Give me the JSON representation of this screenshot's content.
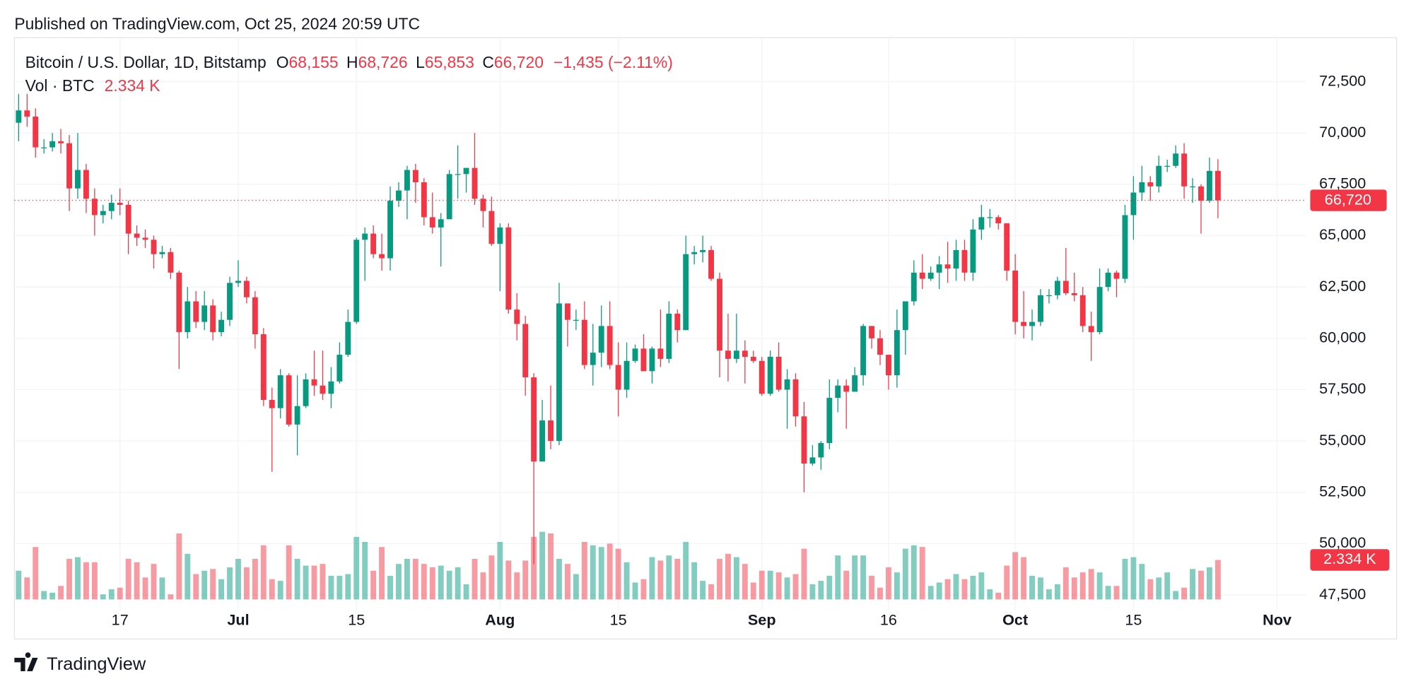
{
  "header": {
    "published": "Published on TradingView.com, Oct 25, 2024 20:59 UTC",
    "symbol": "Bitcoin / U.S. Dollar, 1D, Bitstamp",
    "open_prefix": "O",
    "open": "68,155",
    "high_prefix": "H",
    "high": "68,726",
    "low_prefix": "L",
    "low": "65,853",
    "close_prefix": "C",
    "close": "66,720",
    "change": "−1,435 (−2.11%)",
    "volume_title": "Vol · BTC",
    "volume": "2.334 K"
  },
  "footer": {
    "brand": "TradingView"
  },
  "chart_data": {
    "type": "candlestick",
    "colors": {
      "up": "#089981",
      "down": "#f23645"
    },
    "grid": true,
    "last_price_label": "66,720",
    "last_volume_label": "2.334 K",
    "categories": [
      null,
      null,
      null,
      null,
      null,
      null,
      null,
      null,
      null,
      null,
      null,
      null,
      "17",
      null,
      null,
      null,
      null,
      null,
      null,
      null,
      null,
      null,
      null,
      null,
      null,
      null,
      "Jul",
      null,
      null,
      null,
      null,
      null,
      null,
      null,
      null,
      null,
      null,
      null,
      null,
      null,
      "15",
      null,
      null,
      null,
      null,
      null,
      null,
      null,
      null,
      null,
      null,
      null,
      null,
      null,
      null,
      null,
      null,
      "Aug",
      null,
      null,
      null,
      null,
      null,
      null,
      null,
      null,
      null,
      null,
      null,
      null,
      null,
      "15",
      null,
      null,
      null,
      null,
      null,
      null,
      null,
      null,
      null,
      null,
      null,
      null,
      null,
      null,
      null,
      null,
      "Sep",
      null,
      null,
      null,
      null,
      null,
      null,
      null,
      null,
      null,
      null,
      null,
      null,
      null,
      null,
      "16",
      null,
      null,
      null,
      null,
      null,
      null,
      null,
      null,
      null,
      null,
      null,
      null,
      null,
      null,
      "Oct",
      null,
      null,
      null,
      null,
      null,
      null,
      null,
      null,
      null,
      null,
      null,
      null,
      null,
      "15",
      null,
      null,
      null,
      null,
      null,
      null,
      null,
      null,
      null,
      null,
      null,
      null,
      null,
      null,
      null,
      null,
      "Nov",
      null,
      null,
      null
    ],
    "open": [
      70500,
      71100,
      70800,
      69300,
      69300,
      69600,
      69500,
      67300,
      68200,
      66800,
      66000,
      66200,
      66600,
      66500,
      65100,
      64900,
      64800,
      64100,
      64200,
      63200,
      60300,
      61800,
      60800,
      61600,
      60300,
      60900,
      62700,
      62800,
      62000,
      60200,
      57000,
      56600,
      58200,
      55800,
      56700,
      58000,
      57700,
      57300,
      57900,
      59200,
      60800,
      64800,
      65100,
      64100,
      63900,
      66700,
      67200,
      68200,
      67600,
      65900,
      65400,
      65800,
      68000,
      68000,
      68300,
      66800,
      66200,
      64600,
      65400,
      61400,
      60700,
      58100,
      54000,
      56000,
      55000,
      61700,
      60900,
      60900,
      58700,
      59300,
      60600,
      58700,
      57500,
      58900,
      59500,
      58400,
      59500,
      59000,
      61200,
      60400,
      64100,
      64200,
      64300,
      62900,
      59400,
      59000,
      59400,
      59100,
      58900,
      57300,
      59100,
      57500,
      58000,
      56200,
      53900,
      54200,
      54900,
      57100,
      57700,
      57400,
      58200,
      60600,
      60000,
      59200,
      58200,
      60400,
      61800,
      63200,
      62900,
      63200,
      63600,
      63400,
      64300,
      63200,
      65300,
      65900,
      65900,
      65600,
      63300,
      60800,
      60600,
      60800,
      62100,
      62100,
      62800,
      62200,
      62100,
      60600,
      60300,
      62500,
      63200,
      62900,
      66000,
      67100,
      67600,
      67400,
      68400,
      68400,
      69000,
      67400,
      67400,
      66700,
      68155,
      null,
      null,
      null,
      null,
      null,
      null,
      null,
      null,
      null,
      null
    ],
    "high": [
      71900,
      71900,
      71200,
      69700,
      70000,
      70200,
      69900,
      70000,
      68500,
      67300,
      66500,
      67000,
      67300,
      66700,
      65500,
      65300,
      65000,
      64500,
      64400,
      63300,
      62500,
      62300,
      62300,
      61900,
      61300,
      63000,
      63800,
      63000,
      62300,
      60500,
      57600,
      58500,
      58300,
      58200,
      58300,
      59400,
      59400,
      58600,
      59800,
      61400,
      64900,
      65400,
      65500,
      65100,
      67400,
      67600,
      68400,
      68500,
      67800,
      67100,
      66100,
      68200,
      69400,
      68300,
      70000,
      67000,
      66900,
      65600,
      65600,
      62200,
      61100,
      58300,
      57000,
      57700,
      62700,
      61700,
      61400,
      61800,
      60700,
      61600,
      61800,
      59800,
      59800,
      59700,
      60200,
      59600,
      61400,
      61800,
      61400,
      65000,
      64500,
      65000,
      64500,
      63200,
      61200,
      61200,
      59900,
      59400,
      59100,
      59400,
      59800,
      58500,
      58300,
      56900,
      54800,
      55000,
      58000,
      58000,
      58000,
      58600,
      60700,
      60600,
      60400,
      59200,
      61400,
      61800,
      63800,
      64100,
      63500,
      64000,
      64700,
      64800,
      64800,
      65800,
      66500,
      66300,
      66000,
      65600,
      64100,
      62300,
      61400,
      62400,
      62400,
      63000,
      64400,
      63200,
      62500,
      61300,
      63400,
      63400,
      63300,
      66500,
      67900,
      68400,
      67900,
      68900,
      68700,
      69400,
      69500,
      67800,
      67500,
      68800,
      68726,
      null,
      null,
      null,
      null,
      null,
      null,
      null,
      null,
      null,
      null
    ],
    "low": [
      69600,
      70300,
      68800,
      69000,
      69100,
      69000,
      66200,
      66800,
      66100,
      65000,
      65600,
      65800,
      66000,
      64100,
      64500,
      64400,
      63400,
      63900,
      62900,
      58500,
      60000,
      60500,
      60400,
      59900,
      60100,
      60600,
      62500,
      61700,
      59500,
      56700,
      53500,
      56100,
      55700,
      54300,
      56600,
      57200,
      57000,
      56600,
      57800,
      59100,
      60700,
      62800,
      63900,
      63300,
      63300,
      66400,
      65800,
      66600,
      65500,
      65100,
      63500,
      65800,
      66800,
      67100,
      66500,
      65400,
      64500,
      62300,
      61200,
      59900,
      57200,
      49000,
      54000,
      54600,
      54800,
      59600,
      60400,
      58500,
      57700,
      58600,
      58500,
      56200,
      57100,
      58800,
      58400,
      57800,
      58600,
      58800,
      59800,
      60400,
      63600,
      63700,
      62800,
      58100,
      57900,
      58800,
      57800,
      58800,
      57200,
      57200,
      57400,
      55600,
      55700,
      52500,
      53800,
      53600,
      54600,
      56400,
      55600,
      57400,
      57700,
      59500,
      58700,
      57500,
      57600,
      59200,
      61600,
      62400,
      62800,
      62400,
      62700,
      62800,
      62800,
      62800,
      64800,
      65400,
      65300,
      62800,
      60200,
      60000,
      59900,
      60600,
      61700,
      61900,
      62100,
      61800,
      60300,
      58900,
      60200,
      62300,
      62000,
      62700,
      64800,
      66700,
      66700,
      67100,
      68100,
      68300,
      66800,
      66600,
      65100,
      66600,
      65853,
      null,
      null,
      null,
      null,
      null,
      null,
      null,
      null,
      null,
      null
    ],
    "close": [
      71100,
      70800,
      69300,
      69300,
      69600,
      69500,
      67300,
      68200,
      66800,
      66000,
      66200,
      66600,
      66500,
      65100,
      64900,
      64800,
      64100,
      64200,
      63200,
      60300,
      61800,
      60800,
      61600,
      60300,
      60900,
      62700,
      62800,
      62000,
      60200,
      57000,
      56600,
      58200,
      55800,
      56700,
      58000,
      57700,
      57300,
      57900,
      59200,
      60800,
      64800,
      65100,
      64100,
      63900,
      66700,
      67200,
      68200,
      67600,
      65900,
      65400,
      65800,
      68000,
      68000,
      68300,
      66800,
      66200,
      64600,
      65400,
      61400,
      60700,
      58100,
      54000,
      56000,
      55000,
      61700,
      60900,
      60900,
      58700,
      59300,
      60600,
      58700,
      57500,
      58900,
      59500,
      58400,
      59500,
      59000,
      61200,
      60400,
      64100,
      64200,
      64300,
      62900,
      59400,
      59000,
      59400,
      59100,
      58900,
      57300,
      59100,
      57500,
      58000,
      56200,
      53900,
      54200,
      54900,
      57100,
      57700,
      57400,
      58200,
      60600,
      60000,
      59200,
      58200,
      60400,
      61800,
      63200,
      62900,
      63200,
      63600,
      63400,
      64300,
      63200,
      65300,
      65900,
      65900,
      65600,
      63300,
      60800,
      60600,
      60800,
      62100,
      62100,
      62800,
      62200,
      62100,
      60600,
      60300,
      62500,
      63200,
      62900,
      66000,
      67100,
      67600,
      67400,
      68400,
      68400,
      69000,
      67400,
      67400,
      66700,
      68155,
      66720,
      null,
      null,
      null,
      null,
      null,
      null,
      null,
      null,
      null,
      null
    ],
    "volume": [
      1.7,
      1.3,
      3.1,
      0.5,
      0.4,
      0.8,
      2.4,
      2.5,
      2.2,
      2.2,
      0.3,
      0.6,
      0.7,
      2.4,
      2.2,
      1.3,
      2.1,
      1.3,
      0.3,
      3.9,
      2.7,
      1.5,
      1.7,
      1.8,
      1.2,
      1.9,
      2.4,
      1.9,
      2.4,
      3.2,
      1.2,
      1.1,
      3.2,
      2.4,
      2.0,
      2.0,
      2.1,
      1.4,
      1.4,
      1.5,
      3.7,
      3.4,
      1.7,
      3.1,
      1.4,
      2.1,
      2.4,
      2.4,
      2.1,
      1.9,
      2.0,
      1.7,
      1.9,
      0.9,
      2.4,
      1.6,
      2.6,
      3.4,
      2.3,
      1.6,
      2.3,
      3.7,
      4.0,
      3.9,
      2.4,
      2.1,
      1.5,
      3.4,
      3.2,
      3.1,
      3.3,
      3.0,
      2.2,
      1.0,
      1.2,
      2.5,
      2.3,
      2.6,
      2.4,
      3.4,
      2.2,
      1.1,
      0.9,
      2.4,
      2.7,
      2.5,
      2.1,
      1.0,
      1.7,
      1.7,
      1.6,
      1.3,
      1.5,
      3.0,
      0.9,
      1.1,
      1.4,
      2.6,
      1.7,
      2.6,
      2.6,
      1.4,
      0.7,
      1.9,
      1.6,
      3.0,
      3.2,
      3.1,
      0.8,
      1.0,
      1.2,
      1.5,
      1.2,
      1.4,
      1.6,
      0.6,
      0.4,
      2.0,
      2.8,
      2.5,
      1.4,
      1.3,
      0.6,
      0.9,
      1.9,
      1.3,
      1.6,
      1.8,
      1.6,
      0.8,
      0.8,
      2.4,
      2.5,
      2.1,
      1.2,
      1.3,
      1.6,
      0.5,
      0.7,
      1.8,
      1.7,
      1.9,
      2.334,
      null,
      null,
      null,
      null,
      null,
      null,
      null,
      null,
      null,
      null
    ],
    "ylim": [
      46757,
      74642
    ],
    "yticks": [
      {
        "value": 47500,
        "label": "47,500"
      },
      {
        "value": 50000,
        "label": "50,000"
      },
      {
        "value": 52500,
        "label": "52,500"
      },
      {
        "value": 55000,
        "label": "55,000"
      },
      {
        "value": 57500,
        "label": "57,500"
      },
      {
        "value": 60000,
        "label": "60,000"
      },
      {
        "value": 62500,
        "label": "62,500"
      },
      {
        "value": 65000,
        "label": "65,000"
      },
      {
        "value": 67500,
        "label": "67,500"
      },
      {
        "value": 70000,
        "label": "70,000"
      },
      {
        "value": 72500,
        "label": "72,500"
      }
    ],
    "volume_ylim": [
      0,
      33.2
    ]
  }
}
